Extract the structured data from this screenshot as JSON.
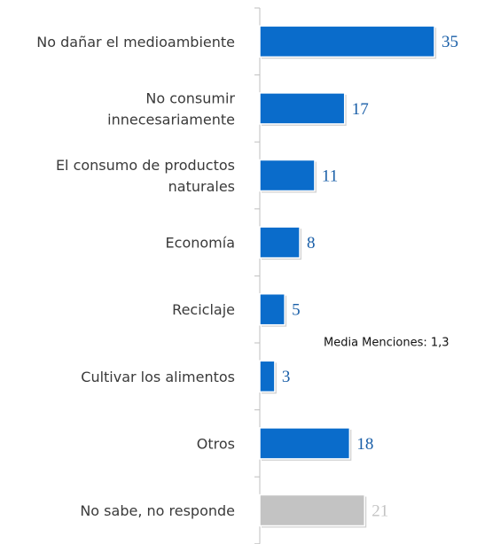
{
  "chart_data": {
    "type": "bar",
    "orientation": "horizontal",
    "categories": [
      "No dañar el medioambiente",
      "No consumir\ninnecesariamente",
      "El consumo de productos\nnaturales",
      "Economía",
      "Reciclaje",
      "Cultivar los alimentos",
      "Otros",
      "No sabe, no responde"
    ],
    "values": [
      35,
      17,
      11,
      8,
      5,
      3,
      18,
      21
    ],
    "colors": [
      "#0a6ccb",
      "#0a6ccb",
      "#0a6ccb",
      "#0a6ccb",
      "#0a6ccb",
      "#0a6ccb",
      "#0a6ccb",
      "#c3c3c3"
    ],
    "annotation": "Media Menciones: 1,3"
  }
}
